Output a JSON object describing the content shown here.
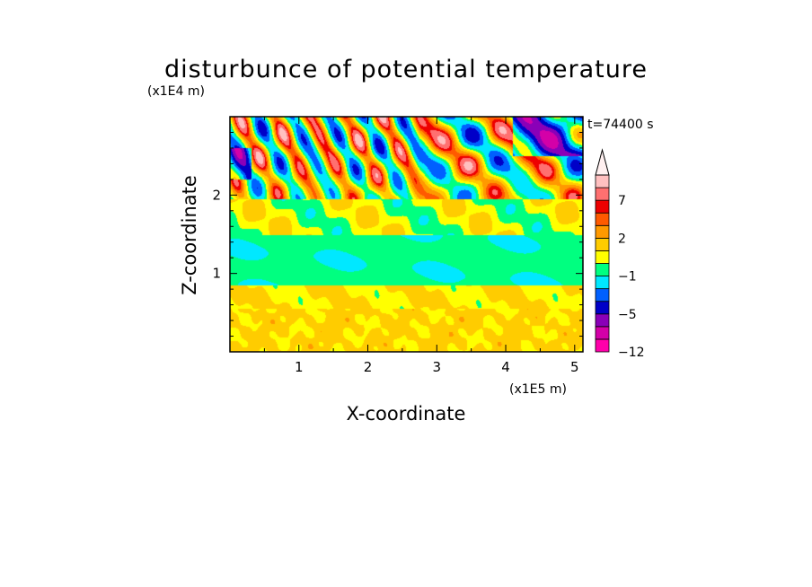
{
  "chart_data": {
    "type": "heatmap",
    "title": "disturbunce of potential temperature",
    "time_label": "t=74400 s",
    "xlabel": "X-coordinate",
    "ylabel": "Z-coordinate",
    "x_unit": "(x1E5 m)",
    "y_unit": "(x1E4 m)",
    "x_ticks": [
      "1",
      "2",
      "3",
      "4",
      "5"
    ],
    "y_ticks": [
      "1",
      "2"
    ],
    "xlim": [
      0,
      5.12
    ],
    "ylim": [
      0,
      3.0
    ],
    "colorbar": {
      "tick_labels": [
        "7",
        "2",
        "−1",
        "−5",
        "−12"
      ],
      "levels": [
        -12,
        -5,
        -1,
        2,
        7
      ],
      "bands": [
        {
          "color": "#ff00aa"
        },
        {
          "color": "#d400a8"
        },
        {
          "color": "#8a00b8"
        },
        {
          "color": "#0000c8"
        },
        {
          "color": "#0060ff"
        },
        {
          "color": "#00e8ff"
        },
        {
          "color": "#00ff80"
        },
        {
          "color": "#ffff00"
        },
        {
          "color": "#ffcc00"
        },
        {
          "color": "#ff9900"
        },
        {
          "color": "#ff5a00"
        },
        {
          "color": "#ee0000"
        },
        {
          "color": "#ff7070"
        },
        {
          "color": "#ffc0c0"
        }
      ],
      "extend_color": "#fff0f0"
    },
    "field_description": [
      {
        "z_range": [
          0,
          0.5
        ],
        "value_range": [
          1,
          4
        ],
        "dominant": "yellow"
      },
      {
        "z_range": [
          0.5,
          0.8
        ],
        "value_range": [
          1,
          3
        ],
        "dominant": "yellow"
      },
      {
        "z_range": [
          0.8,
          1.5
        ],
        "value_range": [
          -2,
          0
        ],
        "dominant": "cyan-green"
      },
      {
        "z_range": [
          1.5,
          2.0
        ],
        "value_range": [
          -1,
          3
        ],
        "dominant": "green-yellow"
      },
      {
        "z_range": [
          2.0,
          3.0
        ],
        "value_range": [
          -9,
          8
        ],
        "dominant": "wave pattern blue/orange"
      }
    ]
  }
}
